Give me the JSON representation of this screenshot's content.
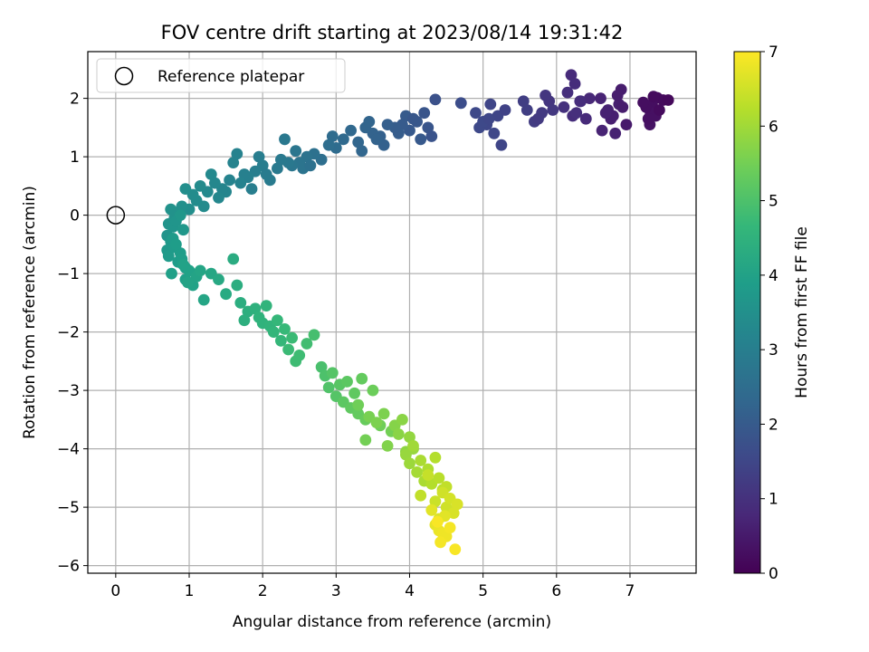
{
  "chart_data": {
    "type": "scatter",
    "title": "FOV centre drift starting at 2023/08/14 19:31:42",
    "xlabel": "Angular distance from reference (arcmin)",
    "ylabel": "Rotation from reference (arcmin)",
    "xlim": [
      -0.38,
      7.9
    ],
    "ylim": [
      -6.13,
      2.8
    ],
    "xticks": [
      0,
      1,
      2,
      3,
      4,
      5,
      6,
      7
    ],
    "yticks": [
      -6,
      -5,
      -4,
      -3,
      -2,
      -1,
      0,
      1,
      2
    ],
    "grid": true,
    "legend": {
      "placement": "top-left",
      "entries": [
        "Reference platepar"
      ]
    },
    "reference_point": {
      "x": 0,
      "y": 0,
      "marker": "open-circle"
    },
    "colorbar": {
      "label": "Hours from first FF file",
      "range": [
        0,
        7
      ],
      "ticks": [
        0,
        1,
        2,
        3,
        4,
        5,
        6,
        7
      ],
      "colormap": "viridis",
      "colormap_stops": [
        "#440154",
        "#482878",
        "#3e4989",
        "#31688e",
        "#26828e",
        "#1f9e89",
        "#35b779",
        "#6ece58",
        "#b5de2b",
        "#fde725"
      ]
    },
    "series": [
      {
        "name": "FOV centre drift",
        "color_by": "hours",
        "x": [
          7.45,
          7.37,
          7.3,
          7.28,
          7.22,
          7.35,
          7.18,
          7.4,
          7.27,
          7.52,
          7.32,
          7.25,
          6.88,
          6.85,
          6.7,
          6.62,
          6.77,
          6.95,
          6.8,
          6.83,
          6.6,
          6.74,
          6.9,
          6.67,
          6.2,
          6.25,
          6.33,
          6.15,
          6.4,
          6.22,
          6.27,
          6.45,
          6.1,
          6.32,
          5.9,
          5.95,
          5.8,
          5.7,
          5.85,
          5.6,
          5.75,
          5.55,
          5.1,
          5.05,
          5.2,
          4.95,
          5.15,
          5.25,
          5.0,
          5.3,
          5.08,
          4.9,
          4.7,
          4.35,
          4.2,
          4.1,
          4.0,
          3.95,
          4.25,
          3.9,
          4.3,
          3.85,
          4.05,
          4.15,
          3.8,
          3.7,
          3.6,
          3.5,
          3.4,
          3.65,
          3.55,
          3.3,
          3.2,
          3.1,
          3.0,
          2.95,
          3.35,
          3.45,
          2.9,
          2.8,
          2.7,
          2.6,
          2.5,
          2.55,
          2.45,
          2.4,
          2.35,
          2.3,
          2.25,
          2.65,
          2.2,
          2.1,
          2.0,
          1.95,
          1.9,
          1.85,
          1.8,
          1.75,
          1.7,
          1.65,
          2.05,
          1.6,
          1.55,
          1.5,
          1.45,
          1.4,
          1.35,
          1.3,
          1.25,
          1.2,
          1.15,
          1.1,
          1.05,
          1.0,
          0.95,
          0.9,
          0.85,
          0.8,
          0.75,
          0.72,
          0.7,
          0.78,
          0.82,
          0.88,
          0.92,
          0.75,
          0.7,
          0.72,
          0.8,
          0.85,
          0.78,
          0.88,
          0.95,
          0.9,
          0.82,
          0.76,
          0.95,
          1.0,
          1.05,
          1.1,
          0.92,
          0.98,
          1.15,
          1.2,
          1.3,
          1.4,
          1.5,
          1.6,
          1.7,
          1.8,
          1.65,
          1.75,
          1.9,
          1.95,
          2.0,
          2.05,
          2.1,
          2.15,
          2.2,
          2.25,
          2.3,
          2.35,
          2.4,
          2.5,
          2.6,
          2.45,
          2.7,
          2.8,
          2.85,
          2.9,
          2.95,
          3.0,
          3.05,
          3.1,
          3.15,
          3.2,
          3.25,
          3.3,
          3.35,
          3.4,
          3.5,
          3.6,
          3.75,
          3.3,
          3.4,
          3.45,
          3.55,
          3.65,
          3.7,
          3.8,
          3.85,
          3.9,
          3.95,
          4.0,
          4.05,
          3.95,
          4.0,
          4.05,
          4.1,
          4.15,
          4.2,
          4.25,
          4.3,
          4.35,
          4.4,
          4.45,
          4.5,
          4.15,
          4.25,
          4.35,
          4.45,
          4.5,
          4.55,
          4.6,
          4.65,
          4.4,
          4.3,
          4.48,
          4.35,
          4.4,
          4.45,
          4.5,
          4.55,
          4.62,
          4.42,
          4.38
        ],
        "y": [
          1.97,
          2.01,
          1.9,
          1.75,
          1.85,
          1.7,
          1.93,
          1.8,
          1.55,
          1.97,
          2.03,
          1.65,
          2.15,
          1.9,
          1.8,
          1.45,
          1.7,
          1.55,
          1.4,
          2.05,
          2.0,
          1.65,
          1.85,
          1.75,
          2.4,
          2.25,
          1.95,
          2.1,
          1.65,
          1.7,
          1.75,
          2.0,
          1.85,
          1.95,
          1.95,
          1.8,
          1.75,
          1.6,
          2.05,
          1.8,
          1.65,
          1.95,
          1.9,
          1.55,
          1.7,
          1.5,
          1.4,
          1.2,
          1.6,
          1.8,
          1.65,
          1.75,
          1.92,
          1.98,
          1.75,
          1.6,
          1.45,
          1.7,
          1.5,
          1.55,
          1.35,
          1.4,
          1.65,
          1.3,
          1.5,
          1.55,
          1.35,
          1.4,
          1.5,
          1.2,
          1.3,
          1.25,
          1.45,
          1.3,
          1.15,
          1.35,
          1.1,
          1.6,
          1.2,
          0.95,
          1.05,
          1.0,
          0.9,
          0.8,
          1.1,
          0.85,
          0.9,
          1.3,
          0.95,
          0.85,
          0.8,
          0.6,
          0.85,
          1.0,
          0.75,
          0.45,
          0.65,
          0.7,
          0.55,
          1.05,
          0.7,
          0.9,
          0.6,
          0.4,
          0.45,
          0.3,
          0.55,
          0.7,
          0.4,
          0.15,
          0.5,
          0.25,
          0.35,
          0.1,
          0.45,
          0.15,
          0.05,
          -0.05,
          0.1,
          -0.15,
          -0.35,
          -0.2,
          -0.1,
          0.0,
          -0.25,
          -0.45,
          -0.6,
          -0.7,
          -0.55,
          -0.8,
          -0.4,
          -0.65,
          -0.9,
          -0.75,
          -0.5,
          -1.0,
          -1.1,
          -0.95,
          -1.2,
          -1.05,
          -0.85,
          -1.15,
          -0.95,
          -1.45,
          -1.0,
          -1.1,
          -1.35,
          -0.75,
          -1.5,
          -1.65,
          -1.2,
          -1.8,
          -1.6,
          -1.75,
          -1.85,
          -1.55,
          -1.9,
          -2.0,
          -1.8,
          -2.15,
          -1.95,
          -2.3,
          -2.1,
          -2.4,
          -2.2,
          -2.5,
          -2.05,
          -2.6,
          -2.75,
          -2.95,
          -2.7,
          -3.1,
          -2.9,
          -3.2,
          -2.85,
          -3.3,
          -3.05,
          -3.4,
          -2.8,
          -3.5,
          -3.0,
          -3.6,
          -3.7,
          -3.25,
          -3.85,
          -3.45,
          -3.55,
          -3.4,
          -3.95,
          -3.6,
          -3.75,
          -3.5,
          -4.05,
          -3.8,
          -4.0,
          -4.1,
          -4.25,
          -3.95,
          -4.4,
          -4.2,
          -4.55,
          -4.35,
          -4.6,
          -4.15,
          -4.5,
          -4.7,
          -4.65,
          -4.8,
          -4.45,
          -4.9,
          -4.75,
          -5.0,
          -4.85,
          -5.1,
          -4.95,
          -5.2,
          -5.05,
          -5.15,
          -5.3,
          -5.4,
          -5.45,
          -5.5,
          -5.35,
          -5.72,
          -5.6,
          -5.25
        ],
        "hours": [
          0.2,
          0.2,
          0.25,
          0.3,
          0.25,
          0.3,
          0.25,
          0.2,
          0.35,
          0.15,
          0.2,
          0.3,
          0.55,
          0.6,
          0.65,
          0.7,
          0.6,
          0.5,
          0.65,
          0.55,
          0.7,
          0.6,
          0.55,
          0.65,
          0.85,
          0.9,
          0.9,
          0.95,
          0.85,
          0.9,
          0.95,
          0.8,
          1.0,
          0.9,
          1.1,
          1.15,
          1.2,
          1.25,
          1.1,
          1.3,
          1.2,
          1.3,
          1.45,
          1.5,
          1.45,
          1.55,
          1.5,
          1.45,
          1.55,
          1.4,
          1.5,
          1.55,
          1.65,
          1.75,
          1.85,
          1.9,
          1.95,
          2.0,
          1.85,
          2.0,
          1.8,
          2.05,
          1.9,
          1.95,
          2.05,
          2.1,
          2.15,
          2.2,
          2.25,
          2.15,
          2.2,
          2.3,
          2.35,
          2.4,
          2.45,
          2.45,
          2.3,
          2.25,
          2.5,
          2.55,
          2.6,
          2.65,
          2.7,
          2.7,
          2.75,
          2.75,
          2.8,
          2.8,
          2.85,
          2.6,
          2.85,
          2.9,
          2.95,
          2.95,
          3.0,
          3.0,
          3.05,
          3.05,
          3.1,
          3.1,
          2.9,
          3.15,
          3.15,
          3.2,
          3.2,
          3.25,
          3.25,
          3.3,
          3.3,
          3.35,
          3.35,
          3.4,
          3.4,
          3.45,
          3.45,
          3.5,
          3.5,
          3.55,
          3.55,
          3.6,
          3.6,
          3.65,
          3.65,
          3.7,
          3.7,
          3.75,
          3.75,
          3.8,
          3.8,
          3.85,
          3.8,
          3.85,
          3.9,
          3.9,
          3.85,
          3.95,
          3.95,
          4.0,
          4.0,
          4.05,
          4.0,
          4.05,
          4.1,
          4.1,
          4.15,
          4.2,
          4.25,
          4.3,
          4.35,
          4.4,
          4.35,
          4.4,
          4.45,
          4.5,
          4.5,
          4.55,
          4.55,
          4.6,
          4.65,
          4.65,
          4.7,
          4.75,
          4.75,
          4.8,
          4.85,
          4.8,
          4.9,
          4.95,
          5.0,
          5.05,
          5.1,
          5.1,
          5.15,
          5.2,
          5.2,
          5.25,
          5.25,
          5.3,
          5.3,
          5.35,
          5.4,
          5.45,
          5.5,
          5.45,
          5.5,
          5.55,
          5.6,
          5.6,
          5.65,
          5.7,
          5.75,
          5.75,
          5.8,
          5.85,
          5.9,
          5.9,
          5.95,
          6.0,
          6.05,
          6.1,
          6.1,
          6.15,
          6.2,
          6.2,
          6.25,
          6.3,
          6.35,
          6.35,
          6.4,
          6.45,
          6.5,
          6.5,
          6.55,
          6.6,
          6.6,
          6.65,
          6.7,
          6.7,
          6.75,
          6.8,
          6.85,
          6.85,
          6.9,
          6.95,
          6.9,
          6.95
        ]
      }
    ]
  }
}
